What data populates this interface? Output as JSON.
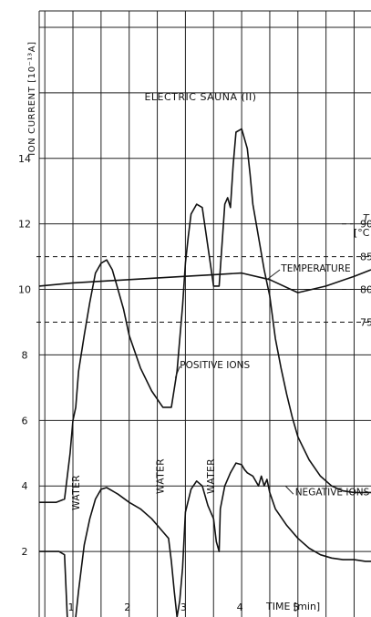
{
  "chart_data": {
    "type": "line",
    "title": "ELECTRIC  SAUNA (II)",
    "ylabel": "ION CURRENT  [10⁻¹³A]",
    "xlabel": "TIME [min]",
    "y2label_line1": "T",
    "y2label_line2": "[°C",
    "xlim": [
      0.4,
      6.3
    ],
    "ylim": [
      0,
      18.5
    ],
    "x_ticks": [
      "1",
      "2",
      "3",
      "4",
      "5"
    ],
    "y_ticks": [
      "2",
      "4",
      "6",
      "8",
      "10",
      "12",
      "14"
    ],
    "y2_ticks": [
      {
        "label": "90",
        "y": 12.0
      },
      {
        "label": "85",
        "y": 11.0
      },
      {
        "label": "80",
        "y": 10.0
      },
      {
        "label": "75",
        "y": 9.0
      }
    ],
    "grid": true,
    "annotations": [
      {
        "text": "WATER",
        "x": 1.05,
        "y": 3.8
      },
      {
        "text": "WATER",
        "x": 2.55,
        "y": 4.3
      },
      {
        "text": "WATER",
        "x": 3.45,
        "y": 4.3
      }
    ],
    "series": [
      {
        "name": "POSITIVE IONS",
        "label_pos": [
          2.9,
          7.6
        ],
        "x": [
          0.4,
          0.7,
          0.85,
          0.95,
          1.0,
          1.05,
          1.1,
          1.2,
          1.3,
          1.4,
          1.5,
          1.6,
          1.7,
          1.8,
          1.9,
          2.0,
          2.2,
          2.4,
          2.6,
          2.75,
          2.85,
          2.95,
          3.0,
          3.05,
          3.1,
          3.2,
          3.3,
          3.4,
          3.5,
          3.6,
          3.7,
          3.75,
          3.8,
          3.85,
          3.9,
          4.0,
          4.05,
          4.1,
          4.15,
          4.2,
          4.3,
          4.4,
          4.5,
          4.6,
          4.7,
          4.8,
          4.9,
          5.0,
          5.2,
          5.4,
          5.6,
          5.8,
          6.0,
          6.2,
          6.3
        ],
        "y": [
          3.5,
          3.5,
          3.6,
          5.0,
          6.0,
          6.4,
          7.5,
          8.6,
          9.6,
          10.5,
          10.8,
          10.9,
          10.6,
          10.0,
          9.4,
          8.6,
          7.6,
          6.9,
          6.4,
          6.4,
          7.5,
          9.5,
          10.8,
          11.6,
          12.3,
          12.6,
          12.5,
          11.3,
          10.1,
          10.1,
          12.6,
          12.8,
          12.5,
          13.8,
          14.8,
          14.9,
          14.6,
          14.3,
          13.5,
          12.6,
          11.6,
          10.6,
          9.8,
          8.5,
          7.6,
          6.8,
          6.1,
          5.5,
          4.8,
          4.3,
          4.0,
          3.85,
          3.8,
          3.8,
          3.8
        ]
      },
      {
        "name": "NEGATIVE IONS",
        "label_pos": [
          4.95,
          3.72
        ],
        "x": [
          0.4,
          0.75,
          0.85,
          0.9,
          1.0,
          1.05,
          1.1,
          1.2,
          1.3,
          1.4,
          1.5,
          1.6,
          1.7,
          1.8,
          2.0,
          2.2,
          2.4,
          2.6,
          2.7,
          2.75,
          2.8,
          2.85,
          2.9,
          2.95,
          3.0,
          3.1,
          3.2,
          3.3,
          3.4,
          3.5,
          3.55,
          3.6,
          3.62,
          3.7,
          3.8,
          3.9,
          4.0,
          4.05,
          4.1,
          4.2,
          4.3,
          4.35,
          4.4,
          4.45,
          4.5,
          4.6,
          4.8,
          5.0,
          5.2,
          5.4,
          5.6,
          5.8,
          6.0,
          6.2,
          6.3
        ],
        "y": [
          2.0,
          2.0,
          1.9,
          0.0,
          -0.2,
          0.0,
          0.8,
          2.2,
          3.0,
          3.6,
          3.9,
          3.95,
          3.85,
          3.75,
          3.5,
          3.3,
          3.0,
          2.6,
          2.4,
          1.7,
          0.8,
          0.0,
          0.5,
          1.5,
          3.2,
          3.9,
          4.15,
          4.0,
          3.4,
          3.0,
          2.3,
          2.0,
          3.3,
          4.0,
          4.4,
          4.7,
          4.65,
          4.5,
          4.4,
          4.3,
          4.0,
          4.3,
          4.0,
          4.2,
          3.8,
          3.3,
          2.8,
          2.4,
          2.1,
          1.9,
          1.8,
          1.75,
          1.75,
          1.7,
          1.7
        ]
      },
      {
        "name": "TEMPERATURE",
        "label_pos": [
          4.7,
          10.55
        ],
        "x": [
          0.4,
          1.0,
          2.0,
          3.0,
          3.5,
          4.0,
          4.5,
          5.0,
          5.5,
          6.0,
          6.3
        ],
        "y": [
          10.1,
          10.2,
          10.3,
          10.4,
          10.45,
          10.5,
          10.3,
          9.9,
          10.1,
          10.4,
          10.6
        ]
      }
    ]
  }
}
